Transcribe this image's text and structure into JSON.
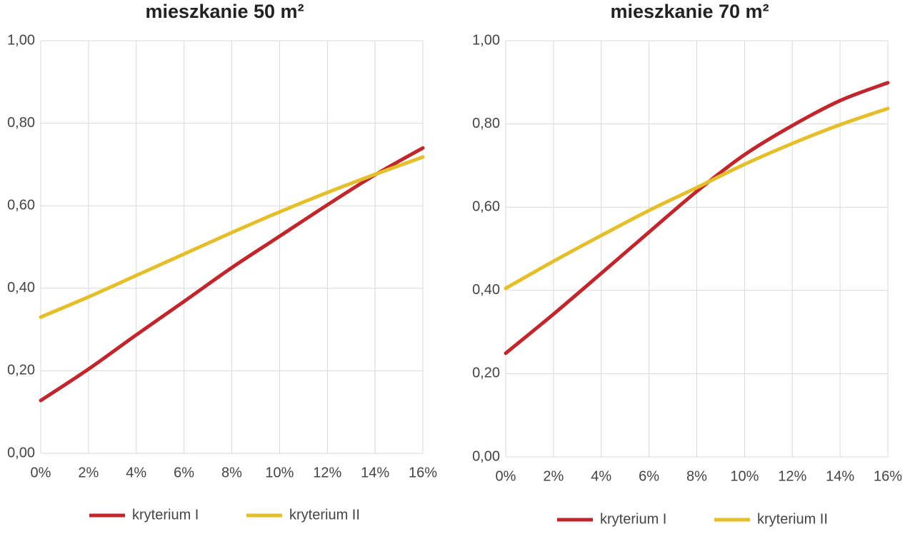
{
  "chart_data": [
    {
      "type": "line",
      "title": "mieszkanie 50 m²",
      "categories": [
        "0%",
        "2%",
        "4%",
        "6%",
        "8%",
        "10%",
        "12%",
        "14%",
        "16%"
      ],
      "series": [
        {
          "name": "kryterium I",
          "color": "#c0272d",
          "values": [
            0.128,
            0.204,
            0.287,
            0.368,
            0.45,
            0.526,
            0.602,
            0.675,
            0.74
          ]
        },
        {
          "name": "kryterium II",
          "color": "#e5bf2b",
          "values": [
            0.33,
            0.379,
            0.431,
            0.483,
            0.535,
            0.585,
            0.632,
            0.676,
            0.718
          ]
        }
      ],
      "ylim": [
        0,
        1
      ],
      "yticks": [
        {
          "value": 0,
          "label": "0,00"
        },
        {
          "value": 0.2,
          "label": "0,20"
        },
        {
          "value": 0.4,
          "label": "0,40"
        },
        {
          "value": 0.6,
          "label": "0,60"
        },
        {
          "value": 0.8,
          "label": "0,80"
        },
        {
          "value": 1,
          "label": "1,00"
        }
      ],
      "grid": true,
      "legend": "bottom"
    },
    {
      "type": "line",
      "title": "mieszkanie 70 m²",
      "categories": [
        "0%",
        "2%",
        "4%",
        "6%",
        "8%",
        "10%",
        "12%",
        "14%",
        "16%"
      ],
      "series": [
        {
          "name": "kryterium I",
          "color": "#c0272d",
          "values": [
            0.249,
            0.343,
            0.441,
            0.54,
            0.638,
            0.726,
            0.796,
            0.856,
            0.899
          ]
        },
        {
          "name": "kryterium II",
          "color": "#e5bf2b",
          "values": [
            0.405,
            0.47,
            0.532,
            0.592,
            0.647,
            0.703,
            0.753,
            0.798,
            0.837
          ]
        }
      ],
      "ylim": [
        0,
        1
      ],
      "yticks": [
        {
          "value": 0,
          "label": "0,00"
        },
        {
          "value": 0.2,
          "label": "0,20"
        },
        {
          "value": 0.4,
          "label": "0,40"
        },
        {
          "value": 0.6,
          "label": "0,60"
        },
        {
          "value": 0.8,
          "label": "0,80"
        },
        {
          "value": 1,
          "label": "1,00"
        }
      ],
      "grid": true,
      "legend": "bottom"
    }
  ]
}
